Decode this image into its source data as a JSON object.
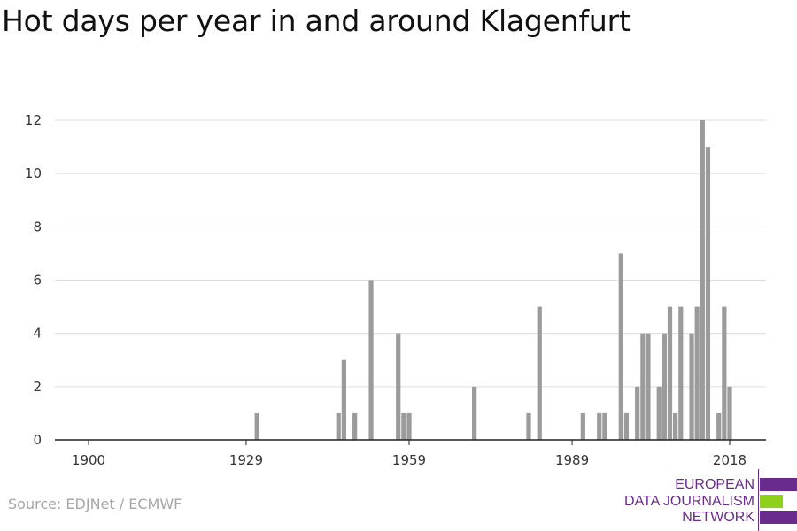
{
  "title": "Hot days per year in and around Klagenfurt",
  "source": "Source: EDJNet / ECMWF",
  "logo": {
    "line1": "EUROPEAN",
    "line2": "DATA JOURNALISM",
    "line3": "NETWORK",
    "colors": {
      "purple": "#6a2c8c",
      "green": "#8fd01c"
    }
  },
  "chart_data": {
    "type": "bar",
    "title": "Hot days per year in and around Klagenfurt",
    "xlabel": "",
    "ylabel": "",
    "xlim": [
      1900,
      2018
    ],
    "ylim": [
      0,
      12
    ],
    "xticks": [
      1900,
      1929,
      1959,
      1989,
      2018
    ],
    "yticks": [
      0,
      2,
      4,
      6,
      8,
      10,
      12
    ],
    "grid": "horizontal",
    "bar_color": "#9b9b9b",
    "series": [
      {
        "x": [
          1931,
          1946,
          1947,
          1949,
          1952,
          1957,
          1958,
          1959,
          1971,
          1981,
          1983,
          1991,
          1994,
          1995,
          1998,
          1999,
          2001,
          2002,
          2003,
          2005,
          2006,
          2007,
          2008,
          2009,
          2011,
          2012,
          2013,
          2014,
          2016,
          2017,
          2018
        ],
        "values": [
          1,
          1,
          3,
          1,
          6,
          4,
          1,
          1,
          2,
          1,
          5,
          1,
          1,
          1,
          7,
          1,
          2,
          4,
          4,
          2,
          4,
          5,
          1,
          5,
          4,
          5,
          12,
          11,
          1,
          5,
          2
        ]
      }
    ]
  }
}
